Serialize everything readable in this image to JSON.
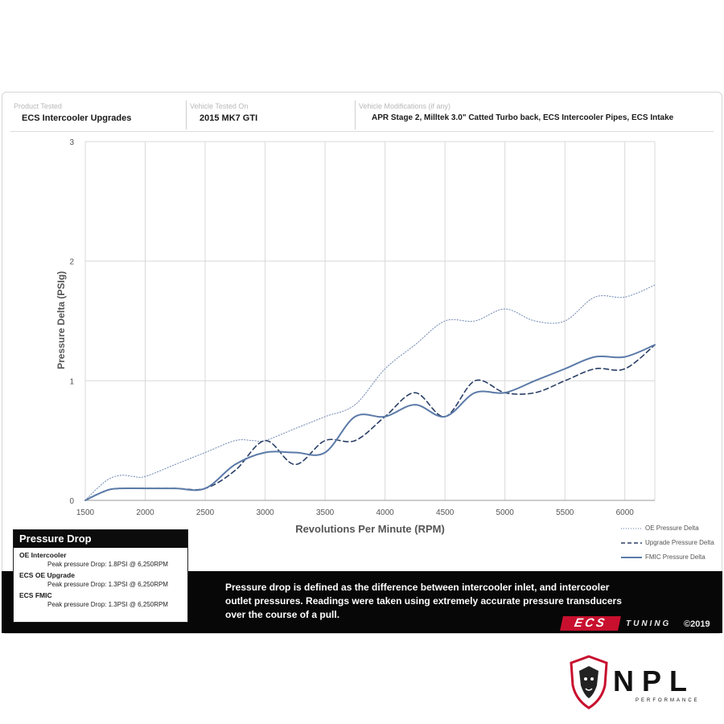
{
  "header": {
    "product_caption": "Product Tested",
    "product_value": "ECS Intercooler Upgrades",
    "vehicle_caption": "Vehicle Tested On",
    "vehicle_value": "2015 MK7 GTI",
    "mods_caption": "Vehicle Modifications (if any)",
    "mods_value": "APR Stage 2, Milltek 3.0\" Catted Turbo back, ECS Intercooler Pipes, ECS Intake"
  },
  "chart_data": {
    "type": "line",
    "xlabel": "Revolutions Per Minute (RPM)",
    "ylabel": "Pressure Delta (PSIg)",
    "xlim": [
      1500,
      6250
    ],
    "ylim": [
      0,
      3
    ],
    "xticks": [
      "1500",
      "2000",
      "2500",
      "3000",
      "3500",
      "4000",
      "4500",
      "5000",
      "5500",
      "6000"
    ],
    "yticks": [
      "0",
      "1",
      "2",
      "3"
    ],
    "grid": true,
    "legend_placement": "bottom-right",
    "series": [
      {
        "name": "OE Pressure Delta",
        "style": "dotted",
        "x": [
          1500,
          1600,
          1700,
          1800,
          1900,
          2000,
          2250,
          2500,
          2750,
          2900,
          3000,
          3250,
          3500,
          3750,
          4000,
          4250,
          4500,
          4750,
          5000,
          5250,
          5500,
          5750,
          6000,
          6250
        ],
        "y": [
          0,
          0.1,
          0.18,
          0.21,
          0.2,
          0.2,
          0.3,
          0.4,
          0.5,
          0.5,
          0.5,
          0.6,
          0.7,
          0.8,
          1.1,
          1.3,
          1.5,
          1.5,
          1.6,
          1.5,
          1.5,
          1.7,
          1.7,
          1.8
        ]
      },
      {
        "name": "Upgrade Pressure Delta",
        "style": "dashed",
        "x": [
          1500,
          1600,
          1700,
          1800,
          2000,
          2250,
          2500,
          2750,
          3000,
          3250,
          3500,
          3750,
          4000,
          4250,
          4500,
          4750,
          5000,
          5250,
          5500,
          5750,
          6000,
          6250
        ],
        "y": [
          0,
          0.05,
          0.09,
          0.1,
          0.1,
          0.1,
          0.1,
          0.25,
          0.5,
          0.3,
          0.5,
          0.5,
          0.7,
          0.9,
          0.7,
          1.0,
          0.9,
          0.9,
          1.0,
          1.1,
          1.1,
          1.3
        ]
      },
      {
        "name": "FMIC Pressure Delta",
        "style": "solid",
        "x": [
          1500,
          1600,
          1700,
          1800,
          2000,
          2250,
          2500,
          2750,
          3000,
          3250,
          3500,
          3750,
          4000,
          4250,
          4500,
          4750,
          5000,
          5250,
          5500,
          5750,
          6000,
          6250
        ],
        "y": [
          0,
          0.05,
          0.09,
          0.1,
          0.1,
          0.1,
          0.1,
          0.3,
          0.4,
          0.4,
          0.4,
          0.7,
          0.7,
          0.8,
          0.7,
          0.9,
          0.9,
          1.0,
          1.1,
          1.2,
          1.2,
          1.3
        ]
      }
    ],
    "color": "#5b7aa8"
  },
  "pressure_drop": {
    "title": "Pressure Drop",
    "items": [
      {
        "name": "OE Intercooler",
        "detail": "Peak pressure Drop: 1.8PSI @ 6,250RPM"
      },
      {
        "name": "ECS OE Upgrade",
        "detail": "Peak pressure Drop: 1.3PSI @ 6,250RPM"
      },
      {
        "name": "ECS FMIC",
        "detail": "Peak pressure Drop: 1.3PSI @ 6,250RPM"
      }
    ]
  },
  "note": "Pressure drop is defined as the difference between intercooler inlet, and intercooler outlet pressures. Readings were taken using extremely accurate pressure transducers over the course of a pull.",
  "brand": {
    "ecs": "ECS",
    "tuning": "TUNING",
    "copyright": "©2019"
  },
  "npl": {
    "name": "NPL",
    "sub": "PERFORMANCE"
  }
}
